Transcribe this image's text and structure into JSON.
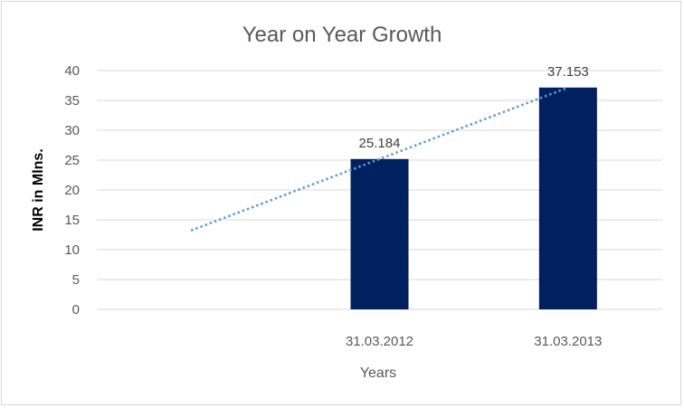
{
  "chart_data": {
    "type": "bar",
    "title": "Year on Year Growth",
    "xlabel": "Years",
    "ylabel": "INR in Mlns.",
    "categories": [
      "",
      "31.03.2012",
      "31.03.2013"
    ],
    "values": [
      null,
      25.184,
      37.153
    ],
    "data_labels": [
      "",
      "25.184",
      "37.153"
    ],
    "ylim": [
      0,
      40
    ],
    "yticks": [
      "0",
      "5",
      "10",
      "15",
      "20",
      "25",
      "30",
      "35",
      "40"
    ],
    "grid": true,
    "legend": "none",
    "trendline": {
      "type": "linear",
      "style": "dotted",
      "start": 13.215,
      "end": 37.153
    },
    "colors": {
      "bar": "#002060",
      "trendline": "#5B9BD5",
      "grid": "#D9D9D9"
    }
  }
}
